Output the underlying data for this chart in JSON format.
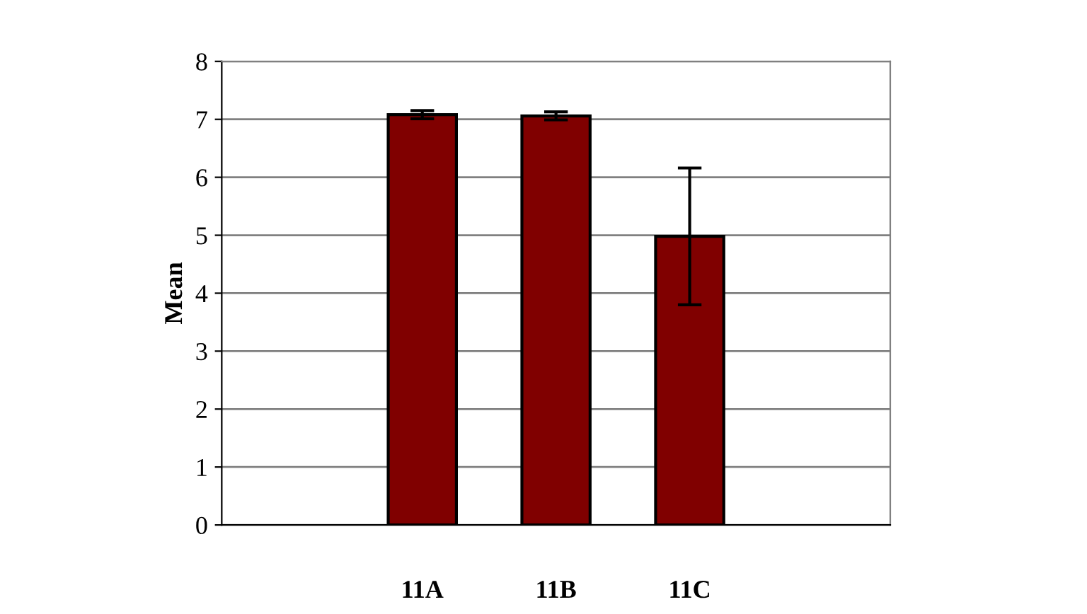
{
  "chart_data": {
    "type": "bar",
    "ylabel": "Mean",
    "categories": [
      null,
      "11A",
      "11B",
      "11C",
      null
    ],
    "values": [
      null,
      7.08,
      7.06,
      4.98,
      null
    ],
    "errors": [
      null,
      0.07,
      0.07,
      1.18,
      null
    ],
    "color": "#800000",
    "ylim": [
      0,
      8
    ],
    "yticks": [
      0,
      1,
      2,
      3,
      4,
      5,
      6,
      7,
      8
    ],
    "grid": "y"
  }
}
